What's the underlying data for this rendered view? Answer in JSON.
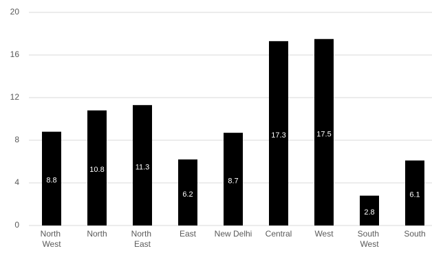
{
  "chart_data": {
    "type": "bar",
    "categories": [
      "North West",
      "North",
      "North East",
      "East",
      "New Delhi",
      "Central",
      "West",
      "South West",
      "South"
    ],
    "values": [
      8.8,
      10.8,
      11.3,
      6.2,
      8.7,
      17.3,
      17.5,
      2.8,
      6.1
    ],
    "color": "#000000",
    "ylim": [
      0,
      20
    ],
    "yticks": [
      0,
      4,
      8,
      12,
      16,
      20
    ],
    "grid": true
  }
}
